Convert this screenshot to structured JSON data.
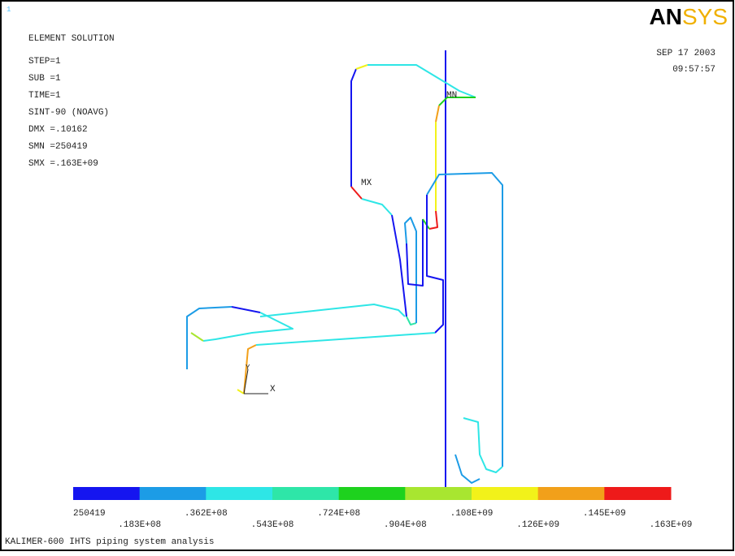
{
  "window": {
    "number": "1"
  },
  "header": {
    "title": "ELEMENT SOLUTION",
    "lines": [
      "STEP=1",
      "SUB =1",
      "TIME=1",
      "SINT-90   (NOAVG)",
      "DMX =.10162",
      "SMN =250419",
      "SMX =.163E+09"
    ]
  },
  "logo": {
    "bold": "AN",
    "light": "SYS"
  },
  "stamp": {
    "date": "SEP 17 2003",
    "time": "09:57:57"
  },
  "markers": {
    "min": "MN",
    "max": "MX",
    "axis_x": "X",
    "axis_y": "Y"
  },
  "legend": {
    "colors": [
      "#1515f0",
      "#1c9ce6",
      "#2ee6e6",
      "#2ee6a8",
      "#1ed21e",
      "#a8e630",
      "#f2f21a",
      "#f2a01a",
      "#ee1a1a"
    ],
    "labels": [
      "250419",
      ".183E+08",
      ".362E+08",
      ".543E+08",
      ".724E+08",
      ".904E+08",
      ".108E+09",
      ".126E+09",
      ".145E+09",
      ".163E+09"
    ]
  },
  "caption": "KALIMER-600 IHTS piping system analysis"
}
